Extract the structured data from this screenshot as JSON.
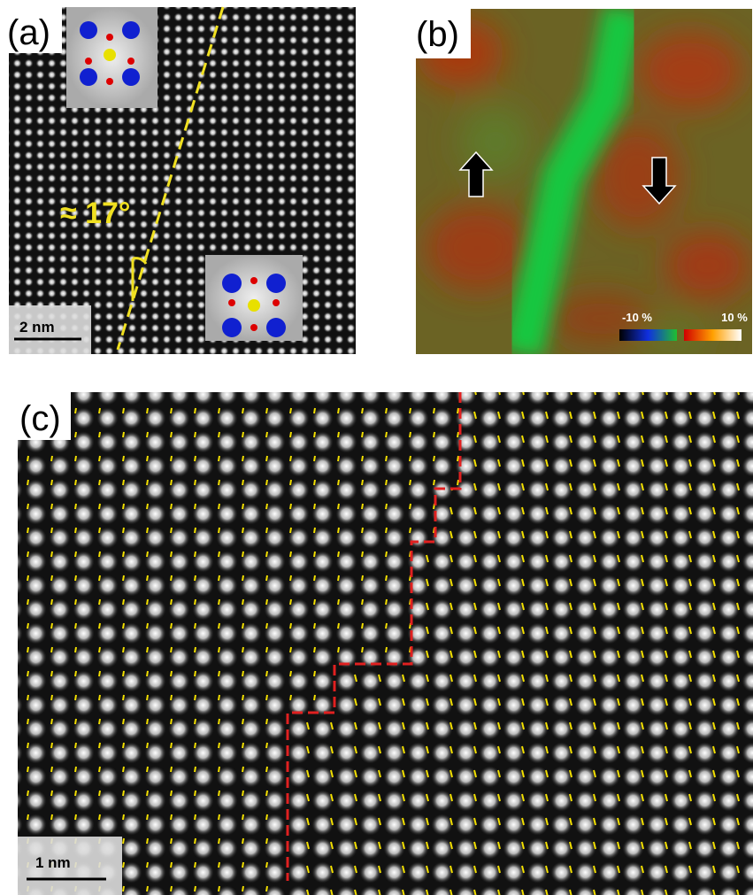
{
  "panel_a": {
    "label": "(a)",
    "angle": "≈ 17°",
    "scale_bar": "2 nm"
  },
  "panel_b": {
    "label": "(b)",
    "colorbar_min": "-10 %",
    "colorbar_max": "10 %"
  },
  "panel_c": {
    "label": "(c)",
    "scale_bar": "1 nm"
  }
}
